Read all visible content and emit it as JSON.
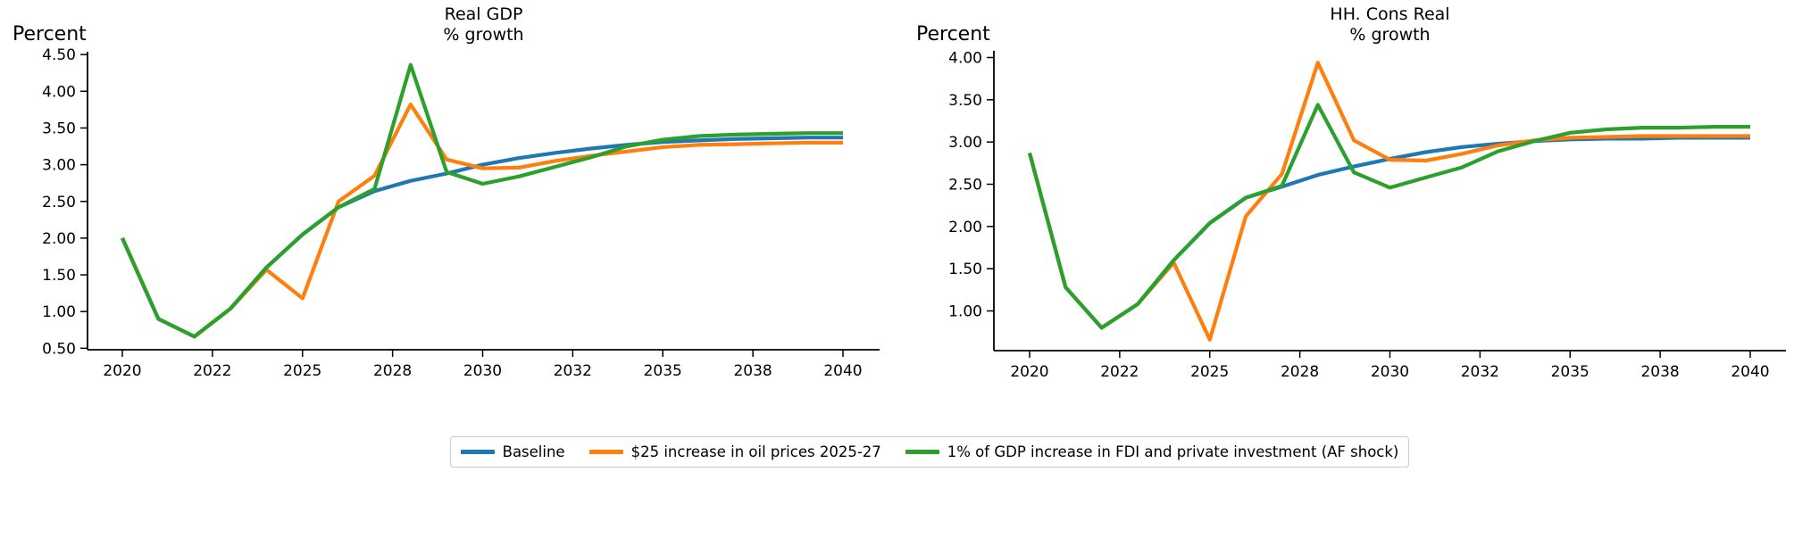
{
  "figure": {
    "background": "#ffffff",
    "text_color": "#000000",
    "axis_color": "#000000"
  },
  "legend": {
    "items": [
      {
        "label": "Baseline",
        "color": "#1f77b4"
      },
      {
        "label": "$25 increase in oil prices 2025-27",
        "color": "#ff7f0e"
      },
      {
        "label": "1% of GDP increase in FDI and private investment (AF shock)",
        "color": "#2ca02c"
      }
    ]
  },
  "chart_data": [
    {
      "type": "line",
      "title": "Real GDP\n% growth",
      "ylabel": "Percent",
      "grid": false,
      "legend_position": "lower center (shared, figure level)",
      "x": [
        2020,
        2021,
        2022,
        2023,
        2024,
        2025,
        2026,
        2027,
        2028,
        2029,
        2030,
        2031,
        2032,
        2033,
        2034,
        2035,
        2036,
        2037,
        2038,
        2039,
        2040
      ],
      "xticks": {
        "positions": [
          2020,
          2022.5,
          2025,
          2027.5,
          2030,
          2032.5,
          2035,
          2037.5,
          2040
        ],
        "labels": [
          "2020",
          "2022",
          "2025",
          "2028",
          "2030",
          "2032",
          "2035",
          "2038",
          "2040"
        ]
      },
      "yticks": [
        0.5,
        1.0,
        1.5,
        2.0,
        2.5,
        3.0,
        3.5,
        4.0,
        4.5
      ],
      "ylim": [
        0.48,
        4.53
      ],
      "xlim": [
        2019,
        2041
      ],
      "series": [
        {
          "name": "Baseline",
          "color": "#1f77b4",
          "values": [
            2.0,
            0.9,
            0.66,
            1.04,
            1.6,
            2.05,
            2.42,
            2.64,
            2.78,
            2.88,
            3.0,
            3.09,
            3.16,
            3.22,
            3.27,
            3.31,
            3.33,
            3.35,
            3.36,
            3.37,
            3.37
          ]
        },
        {
          "name": "$25 increase in oil prices 2025-27",
          "color": "#ff7f0e",
          "values": [
            2.0,
            0.9,
            0.66,
            1.04,
            1.57,
            1.18,
            2.5,
            2.85,
            3.82,
            3.07,
            2.95,
            2.96,
            3.05,
            3.12,
            3.18,
            3.24,
            3.27,
            3.28,
            3.29,
            3.3,
            3.3
          ]
        },
        {
          "name": "1% of GDP increase in FDI and private investment (AF shock)",
          "color": "#2ca02c",
          "values": [
            2.0,
            0.9,
            0.66,
            1.04,
            1.6,
            2.05,
            2.42,
            2.67,
            4.36,
            2.9,
            2.74,
            2.84,
            2.97,
            3.1,
            3.25,
            3.34,
            3.39,
            3.41,
            3.42,
            3.43,
            3.43
          ]
        }
      ]
    },
    {
      "type": "line",
      "title": "HH. Cons Real\n% growth",
      "ylabel": "Percent",
      "grid": false,
      "legend_position": "lower center (shared, figure level)",
      "x": [
        2020,
        2021,
        2022,
        2023,
        2024,
        2025,
        2026,
        2027,
        2028,
        2029,
        2030,
        2031,
        2032,
        2033,
        2034,
        2035,
        2036,
        2037,
        2038,
        2039,
        2040
      ],
      "xticks": {
        "positions": [
          2020,
          2022.5,
          2025,
          2027.5,
          2030,
          2032.5,
          2035,
          2037.5,
          2040
        ],
        "labels": [
          "2020",
          "2022",
          "2025",
          "2028",
          "2030",
          "2032",
          "2035",
          "2038",
          "2040"
        ]
      },
      "yticks": [
        1.0,
        1.5,
        2.0,
        2.5,
        3.0,
        3.5,
        4.0
      ],
      "ylim": [
        0.53,
        4.08
      ],
      "xlim": [
        2019,
        2041
      ],
      "series": [
        {
          "name": "Baseline",
          "color": "#1f77b4",
          "values": [
            2.87,
            1.28,
            0.8,
            1.08,
            1.6,
            2.04,
            2.34,
            2.47,
            2.61,
            2.71,
            2.8,
            2.88,
            2.94,
            2.98,
            3.01,
            3.03,
            3.04,
            3.04,
            3.05,
            3.05,
            3.05
          ]
        },
        {
          "name": "$25 increase in oil prices 2025-27",
          "color": "#ff7f0e",
          "values": [
            2.87,
            1.28,
            0.8,
            1.08,
            1.57,
            0.66,
            2.12,
            2.62,
            3.94,
            3.02,
            2.79,
            2.78,
            2.86,
            2.96,
            3.02,
            3.05,
            3.06,
            3.07,
            3.07,
            3.07,
            3.07
          ]
        },
        {
          "name": "1% of GDP increase in FDI and private investment (AF shock)",
          "color": "#2ca02c",
          "values": [
            2.87,
            1.28,
            0.8,
            1.08,
            1.6,
            2.04,
            2.34,
            2.48,
            3.44,
            2.64,
            2.46,
            2.58,
            2.7,
            2.89,
            3.01,
            3.11,
            3.15,
            3.17,
            3.17,
            3.18,
            3.18
          ]
        }
      ]
    }
  ]
}
